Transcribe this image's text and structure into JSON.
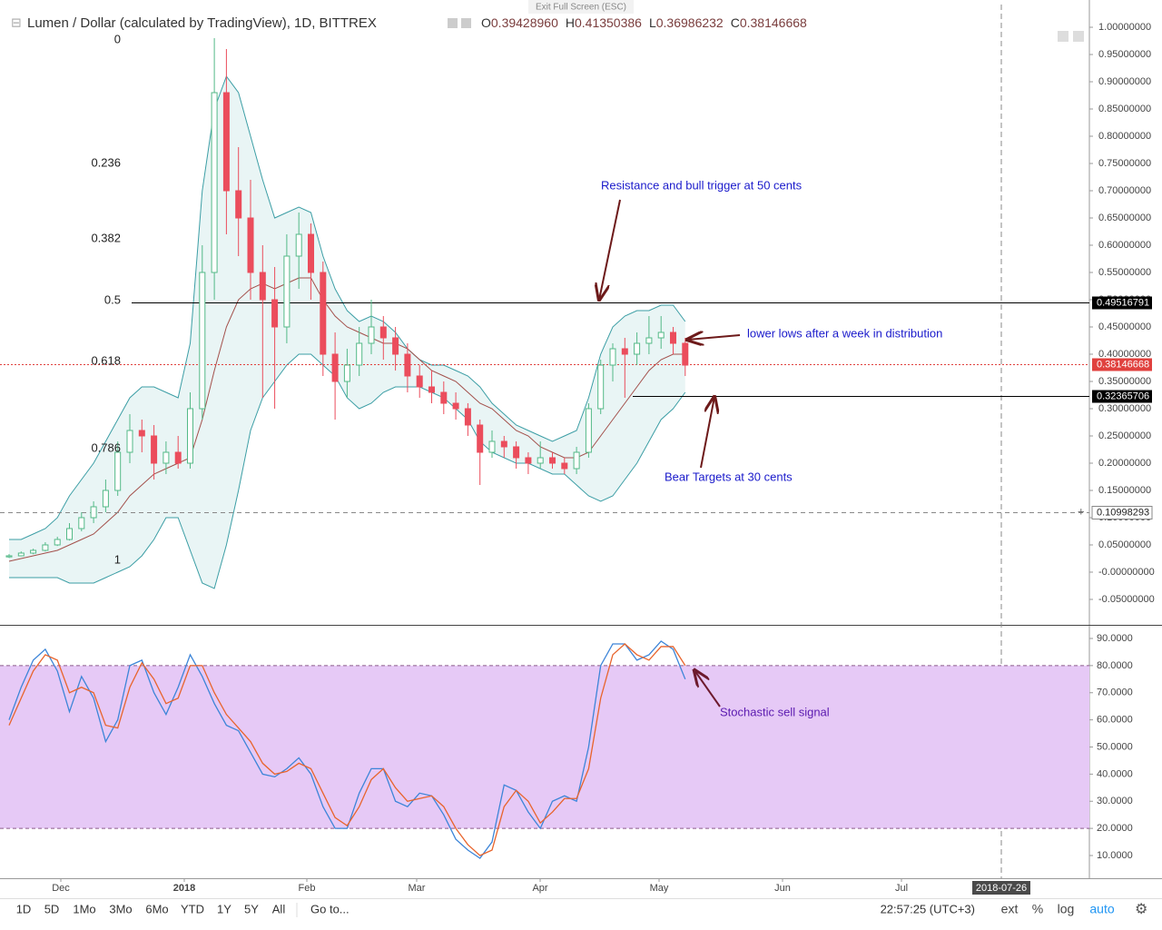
{
  "exit_fullscreen": "Exit Full Screen (ESC)",
  "header": {
    "title": "Lumen / Dollar (calculated by TradingView), 1D, BITTREX",
    "ohlc": [
      {
        "label": "O",
        "value": "0.39428960"
      },
      {
        "label": "H",
        "value": "0.41350386"
      },
      {
        "label": "L",
        "value": "0.36986232"
      },
      {
        "label": "C",
        "value": "0.38146668"
      }
    ]
  },
  "chart_data": [
    {
      "type": "candlestick",
      "categories": [
        null,
        null,
        null,
        null,
        null,
        null,
        null,
        null,
        null,
        null,
        null,
        null,
        null,
        null,
        null,
        null,
        null,
        null,
        null,
        null,
        null,
        null,
        null,
        null,
        null,
        null,
        null,
        null,
        null,
        null,
        null,
        null,
        null,
        null,
        null,
        null,
        null,
        null,
        null,
        null,
        null,
        null,
        null,
        null,
        null,
        null,
        null,
        null,
        null,
        null,
        null,
        null,
        null,
        null,
        null,
        null,
        null
      ],
      "open": [
        0.028,
        0.03,
        0.035,
        0.04,
        0.05,
        0.06,
        0.08,
        0.1,
        0.12,
        0.15,
        0.22,
        0.26,
        0.25,
        0.2,
        0.22,
        0.2,
        0.3,
        0.55,
        0.88,
        0.7,
        0.65,
        0.55,
        0.5,
        0.45,
        0.58,
        0.62,
        0.55,
        0.4,
        0.35,
        0.38,
        0.42,
        0.45,
        0.43,
        0.4,
        0.36,
        0.34,
        0.33,
        0.31,
        0.3,
        0.27,
        0.22,
        0.24,
        0.23,
        0.21,
        0.2,
        0.21,
        0.2,
        0.19,
        0.22,
        0.3,
        0.38,
        0.41,
        0.4,
        0.42,
        0.43,
        0.44,
        0.42
      ],
      "high": [
        0.033,
        0.038,
        0.043,
        0.055,
        0.065,
        0.09,
        0.11,
        0.13,
        0.17,
        0.24,
        0.29,
        0.28,
        0.27,
        0.24,
        0.25,
        0.33,
        0.6,
        0.98,
        0.96,
        0.78,
        0.72,
        0.6,
        0.56,
        0.62,
        0.66,
        0.64,
        0.57,
        0.44,
        0.41,
        0.45,
        0.5,
        0.47,
        0.45,
        0.42,
        0.38,
        0.37,
        0.35,
        0.33,
        0.31,
        0.28,
        0.26,
        0.25,
        0.24,
        0.22,
        0.24,
        0.22,
        0.21,
        0.23,
        0.31,
        0.39,
        0.42,
        0.43,
        0.44,
        0.47,
        0.47,
        0.45,
        0.43
      ],
      "low": [
        0.026,
        0.029,
        0.033,
        0.038,
        0.048,
        0.058,
        0.075,
        0.09,
        0.11,
        0.14,
        0.2,
        0.22,
        0.17,
        0.18,
        0.19,
        0.19,
        0.28,
        0.5,
        0.62,
        0.58,
        0.5,
        0.32,
        0.3,
        0.42,
        0.52,
        0.5,
        0.36,
        0.28,
        0.32,
        0.36,
        0.4,
        0.39,
        0.37,
        0.33,
        0.32,
        0.31,
        0.29,
        0.28,
        0.25,
        0.16,
        0.21,
        0.21,
        0.19,
        0.18,
        0.19,
        0.19,
        0.18,
        0.18,
        0.21,
        0.29,
        0.35,
        0.32,
        0.38,
        0.4,
        0.41,
        0.4,
        0.36
      ],
      "close": [
        0.03,
        0.035,
        0.04,
        0.05,
        0.06,
        0.08,
        0.1,
        0.12,
        0.15,
        0.22,
        0.26,
        0.25,
        0.2,
        0.22,
        0.2,
        0.3,
        0.55,
        0.88,
        0.7,
        0.65,
        0.55,
        0.5,
        0.45,
        0.58,
        0.62,
        0.55,
        0.4,
        0.35,
        0.38,
        0.42,
        0.45,
        0.43,
        0.4,
        0.36,
        0.34,
        0.33,
        0.31,
        0.3,
        0.27,
        0.22,
        0.24,
        0.23,
        0.21,
        0.2,
        0.21,
        0.2,
        0.19,
        0.22,
        0.3,
        0.38,
        0.41,
        0.4,
        0.42,
        0.43,
        0.44,
        0.42,
        0.38
      ],
      "up_color": "#53b987",
      "down_color": "#eb4d5c",
      "bollinger": {
        "upper": [
          0.06,
          0.06,
          0.07,
          0.08,
          0.1,
          0.14,
          0.17,
          0.2,
          0.24,
          0.28,
          0.32,
          0.34,
          0.34,
          0.33,
          0.32,
          0.42,
          0.7,
          0.85,
          0.91,
          0.88,
          0.8,
          0.72,
          0.65,
          0.66,
          0.67,
          0.66,
          0.58,
          0.52,
          0.48,
          0.46,
          0.47,
          0.46,
          0.44,
          0.41,
          0.39,
          0.38,
          0.38,
          0.37,
          0.36,
          0.34,
          0.31,
          0.29,
          0.27,
          0.26,
          0.25,
          0.24,
          0.25,
          0.26,
          0.32,
          0.4,
          0.45,
          0.47,
          0.48,
          0.48,
          0.49,
          0.49,
          0.46
        ],
        "middle": [
          0.02,
          0.025,
          0.03,
          0.035,
          0.04,
          0.05,
          0.06,
          0.07,
          0.09,
          0.11,
          0.14,
          0.16,
          0.18,
          0.19,
          0.2,
          0.21,
          0.28,
          0.37,
          0.45,
          0.5,
          0.52,
          0.53,
          0.52,
          0.53,
          0.54,
          0.54,
          0.5,
          0.47,
          0.45,
          0.44,
          0.43,
          0.42,
          0.42,
          0.41,
          0.39,
          0.37,
          0.36,
          0.35,
          0.33,
          0.31,
          0.3,
          0.28,
          0.26,
          0.25,
          0.23,
          0.22,
          0.21,
          0.21,
          0.22,
          0.25,
          0.28,
          0.31,
          0.34,
          0.37,
          0.39,
          0.4,
          0.4
        ],
        "lower": [
          -0.01,
          -0.01,
          -0.01,
          -0.01,
          -0.01,
          -0.02,
          -0.02,
          -0.02,
          -0.01,
          0,
          0.01,
          0.03,
          0.06,
          0.1,
          0.1,
          0.04,
          -0.02,
          -0.03,
          0.05,
          0.15,
          0.26,
          0.32,
          0.35,
          0.38,
          0.4,
          0.4,
          0.38,
          0.36,
          0.32,
          0.3,
          0.31,
          0.33,
          0.34,
          0.34,
          0.34,
          0.33,
          0.32,
          0.3,
          0.28,
          0.24,
          0.22,
          0.21,
          0.2,
          0.2,
          0.19,
          0.18,
          0.18,
          0.16,
          0.14,
          0.13,
          0.14,
          0.17,
          0.2,
          0.24,
          0.28,
          0.3,
          0.33
        ],
        "band_color": "#3c9ea5",
        "fill": "#e4f2f3",
        "middle_color": "#a3504b"
      },
      "ylim": [
        -0.0967,
        1.0417
      ],
      "yticks": [
        {
          "value": 1.0,
          "label": "1.00000000"
        },
        {
          "value": 0.95,
          "label": "0.95000000"
        },
        {
          "value": 0.9,
          "label": "0.90000000"
        },
        {
          "value": 0.85,
          "label": "0.85000000"
        },
        {
          "value": 0.8,
          "label": "0.80000000"
        },
        {
          "value": 0.75,
          "label": "0.75000000"
        },
        {
          "value": 0.7,
          "label": "0.70000000"
        },
        {
          "value": 0.65,
          "label": "0.65000000"
        },
        {
          "value": 0.6,
          "label": "0.60000000"
        },
        {
          "value": 0.55,
          "label": "0.55000000"
        },
        {
          "value": 0.5,
          "label": "0.50000000"
        },
        {
          "value": 0.45,
          "label": "0.45000000"
        },
        {
          "value": 0.4,
          "label": "0.40000000"
        },
        {
          "value": 0.35,
          "label": "0.35000000"
        },
        {
          "value": 0.3,
          "label": "0.30000000"
        },
        {
          "value": 0.25,
          "label": "0.25000000"
        },
        {
          "value": 0.2,
          "label": "0.20000000"
        },
        {
          "value": 0.15,
          "label": "0.15000000"
        },
        {
          "value": 0.1,
          "label": "0.10000000"
        },
        {
          "value": 0.05,
          "label": "0.05000000"
        },
        {
          "value": 0,
          "label": "-0.00000000"
        },
        {
          "value": -0.05,
          "label": "-0.05000000"
        }
      ],
      "levels": [
        {
          "value": 0.49516791,
          "color": "#000000",
          "style": "solid"
        },
        {
          "value": 0.38146668,
          "color": "#e0413e",
          "style": "dotted"
        },
        {
          "value": 0.32365706,
          "color": "#000000",
          "style": "solid"
        },
        {
          "value": 0.10998293,
          "color": "#888888",
          "style": "dashed"
        }
      ],
      "fib_labels": [
        0,
        0.236,
        0.382,
        0.5,
        0.618,
        0.786,
        1
      ],
      "annotations": [
        "Resistance and bull trigger at 50 cents",
        "lower lows after a week in distribution",
        "Bear Targets at 30 cents"
      ],
      "x_labels": [
        "Dec",
        "2018",
        "Feb",
        "Mar",
        "Apr",
        "May",
        "Jun",
        "Jul"
      ],
      "cursor_date": "2018-07-26"
    },
    {
      "type": "line",
      "series": [
        {
          "name": "%K",
          "color": "#3d85d8",
          "values": [
            60,
            72,
            82,
            86,
            78,
            63,
            76,
            68,
            52,
            60,
            80,
            82,
            70,
            62,
            72,
            84,
            76,
            66,
            58,
            56,
            48,
            40,
            39,
            42,
            46,
            40,
            28,
            20,
            20,
            33,
            42,
            42,
            30,
            28,
            33,
            32,
            25,
            16,
            12,
            9,
            15,
            36,
            34,
            26,
            20,
            30,
            32,
            30,
            50,
            80,
            88,
            88,
            82,
            84,
            89,
            86,
            75
          ]
        },
        {
          "name": "%D",
          "color": "#e8642c",
          "values": [
            58,
            68,
            78,
            84,
            82,
            70,
            72,
            70,
            58,
            57,
            72,
            81,
            75,
            66,
            68,
            80,
            80,
            70,
            62,
            57,
            52,
            44,
            40,
            41,
            44,
            42,
            33,
            24,
            21,
            28,
            38,
            42,
            35,
            30,
            31,
            32,
            28,
            20,
            14,
            10,
            12,
            28,
            34,
            30,
            22,
            26,
            31,
            31,
            42,
            68,
            84,
            88,
            84,
            82,
            87,
            87,
            80
          ]
        }
      ],
      "bands": [
        20,
        80
      ],
      "band_color": "#e6c9f6",
      "ylim": [
        2.3,
        94.35
      ],
      "yticks": [
        {
          "value": 90,
          "label": "90.0000"
        },
        {
          "value": 80,
          "label": "80.0000"
        },
        {
          "value": 70,
          "label": "70.0000"
        },
        {
          "value": 60,
          "label": "60.0000"
        },
        {
          "value": 50,
          "label": "50.0000"
        },
        {
          "value": 40,
          "label": "40.0000"
        },
        {
          "value": 30,
          "label": "30.0000"
        },
        {
          "value": 20,
          "label": "20.0000"
        },
        {
          "value": 10,
          "label": "10.0000"
        }
      ],
      "annotations": [
        "Stochastic sell signal"
      ]
    }
  ],
  "toolbar": {
    "ranges": [
      "1D",
      "5D",
      "1Mo",
      "3Mo",
      "6Mo",
      "YTD",
      "1Y",
      "5Y",
      "All"
    ],
    "goto": "Go to...",
    "clock": "22:57:25 (UTC+3)",
    "options": [
      "ext",
      "%",
      "log",
      "auto"
    ]
  }
}
